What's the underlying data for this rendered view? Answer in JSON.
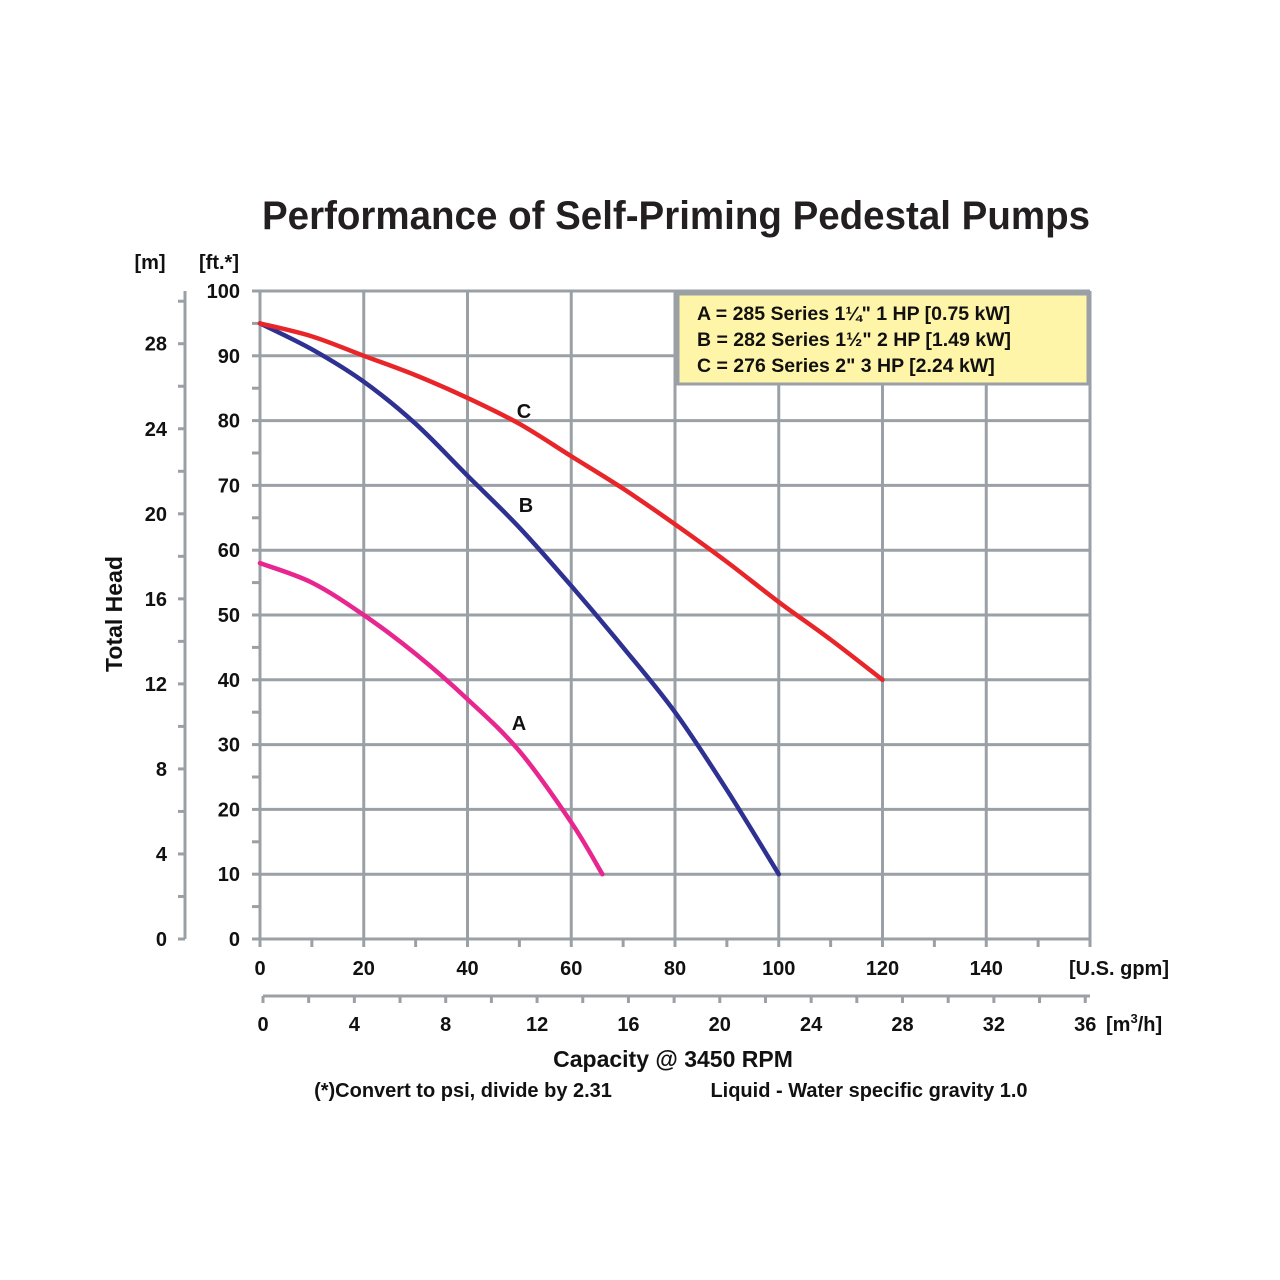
{
  "chart_data": {
    "type": "line",
    "title": "Performance of Self-Priming Pedestal Pumps",
    "ylabel": "Total Head",
    "y_units": {
      "meters": "[m]",
      "feet": "[ft.*]"
    },
    "xlabel": "Capacity @ 3450 RPM",
    "x_units": {
      "gpm": "[U.S. gpm]",
      "m3h": "[m³/h]",
      "m3h_base": "[m",
      "m3h_sup": "3",
      "m3h_tail": "/h]"
    },
    "footnote_left": "(*)Convert to psi, divide by 2.31",
    "footnote_right": "Liquid - Water specific gravity 1.0",
    "xlim_gpm": [
      0,
      160
    ],
    "ylim_ft": [
      0,
      100
    ],
    "x_ticks_gpm": [
      "0",
      "20",
      "40",
      "60",
      "80",
      "100",
      "120",
      "140"
    ],
    "x_tick_values_gpm": [
      0,
      20,
      40,
      60,
      80,
      100,
      120,
      140
    ],
    "x_ticks_m3h": [
      "0",
      "4",
      "8",
      "12",
      "16",
      "20",
      "24",
      "28",
      "32",
      "36"
    ],
    "x_tick_values_m3h": [
      0,
      4,
      8,
      12,
      16,
      20,
      24,
      28,
      32,
      36
    ],
    "y_ticks_ft": [
      "0",
      "10",
      "20",
      "30",
      "40",
      "50",
      "60",
      "70",
      "80",
      "90",
      "100"
    ],
    "y_tick_values_ft": [
      0,
      10,
      20,
      30,
      40,
      50,
      60,
      70,
      80,
      90,
      100
    ],
    "y_ticks_m": [
      "0",
      "4",
      "8",
      "12",
      "16",
      "20",
      "24",
      "28"
    ],
    "y_tick_values_m": [
      0,
      4,
      8,
      12,
      16,
      20,
      24,
      28
    ],
    "grid": true,
    "legend_position": "top-right",
    "legend": [
      "A = 285 Series 1¼\" 1 HP [0.75 kW]",
      "B = 282 Series 1½\" 2 HP [1.49 kW]",
      "C = 276 Series 2\" 3 HP [2.24 kW]"
    ],
    "series": [
      {
        "name": "A",
        "label": "A",
        "color": "#e8268f",
        "x": [
          0,
          10,
          20,
          30,
          40,
          50,
          60,
          66
        ],
        "y": [
          58,
          55,
          50,
          44,
          37,
          29,
          18,
          10
        ]
      },
      {
        "name": "B",
        "label": "B",
        "color": "#2e3192",
        "x": [
          0,
          10,
          20,
          30,
          40,
          50,
          60,
          70,
          80,
          90,
          100
        ],
        "y": [
          95,
          91,
          86,
          79.5,
          71.5,
          63.5,
          54.5,
          45,
          35,
          23,
          10
        ]
      },
      {
        "name": "C",
        "label": "C",
        "color": "#e8262a",
        "x": [
          0,
          10,
          20,
          30,
          40,
          50,
          60,
          70,
          80,
          90,
          100,
          110,
          120
        ],
        "y": [
          95,
          93,
          90,
          87,
          83.5,
          79.5,
          74.5,
          69.5,
          64,
          58.2,
          52,
          46.2,
          40
        ]
      }
    ],
    "colors": {
      "grid": "#9aa0a6",
      "legend_bg": "#fff5a8",
      "text": "#111111"
    }
  }
}
